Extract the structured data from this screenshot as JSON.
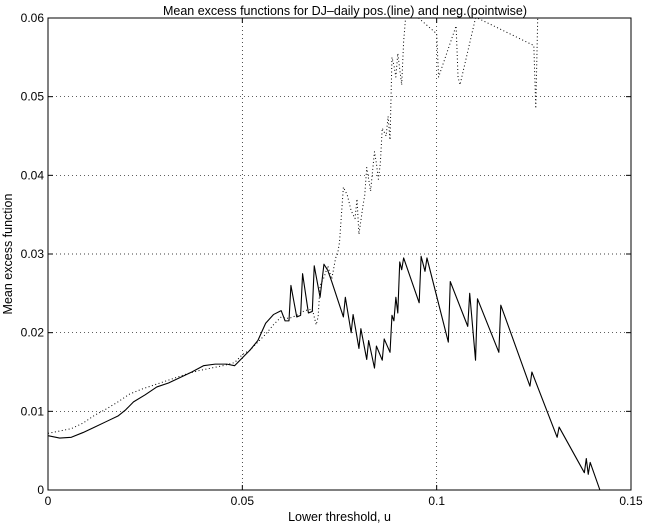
{
  "chart_data": {
    "type": "line",
    "title": "Mean excess functions for DJ–daily pos.(line) and neg.(pointwise)",
    "xlabel": "Lower threshold, u",
    "ylabel": "Mean excess function",
    "xlim": [
      0,
      0.15
    ],
    "ylim": [
      0,
      0.06
    ],
    "xticks": [
      0,
      0.05,
      0.1,
      0.15
    ],
    "xtick_labels": [
      "0",
      "0.05",
      "0.1",
      "0.15"
    ],
    "yticks": [
      0,
      0.01,
      0.02,
      0.03,
      0.04,
      0.05,
      0.06
    ],
    "ytick_labels": [
      "0",
      "0.01",
      "0.02",
      "0.03",
      "0.04",
      "0.05",
      "0.06"
    ],
    "grid": true,
    "series": [
      {
        "style": "solid",
        "color": "#000000",
        "x": [
          0,
          0.003,
          0.006,
          0.009,
          0.012,
          0.015,
          0.018,
          0.02,
          0.022,
          0.025,
          0.028,
          0.031,
          0.034,
          0.037,
          0.04,
          0.043,
          0.046,
          0.048,
          0.05,
          0.052,
          0.054,
          0.056,
          0.058,
          0.06,
          0.061,
          0.062,
          0.0625,
          0.064,
          0.065,
          0.0655,
          0.067,
          0.068,
          0.0685,
          0.07,
          0.071,
          0.072,
          0.073,
          0.074,
          0.076,
          0.0765,
          0.078,
          0.0785,
          0.08,
          0.0805,
          0.082,
          0.0825,
          0.084,
          0.0845,
          0.086,
          0.0865,
          0.088,
          0.0885,
          0.089,
          0.0895,
          0.09,
          0.0905,
          0.091,
          0.0915,
          0.0955,
          0.096,
          0.097,
          0.0975,
          0.103,
          0.1035,
          0.108,
          0.1085,
          0.11,
          0.1105,
          0.116,
          0.1165,
          0.124,
          0.1245,
          0.131,
          0.1315,
          0.138,
          0.1385,
          0.139,
          0.1395,
          0.142
        ],
        "y": [
          0.0069,
          0.0066,
          0.0067,
          0.0073,
          0.008,
          0.0087,
          0.0094,
          0.0102,
          0.0112,
          0.0121,
          0.0131,
          0.0136,
          0.0143,
          0.015,
          0.0158,
          0.016,
          0.016,
          0.0158,
          0.0168,
          0.0178,
          0.019,
          0.0212,
          0.0223,
          0.0228,
          0.0215,
          0.0215,
          0.026,
          0.022,
          0.0222,
          0.0275,
          0.0225,
          0.0227,
          0.0285,
          0.0245,
          0.0287,
          0.0279,
          0.0265,
          0.025,
          0.022,
          0.0245,
          0.02,
          0.0223,
          0.018,
          0.0205,
          0.0166,
          0.019,
          0.0155,
          0.0183,
          0.0165,
          0.0192,
          0.0175,
          0.0222,
          0.0215,
          0.0245,
          0.0225,
          0.029,
          0.028,
          0.0295,
          0.0238,
          0.0297,
          0.0278,
          0.0295,
          0.0188,
          0.0265,
          0.0208,
          0.025,
          0.0165,
          0.0243,
          0.0175,
          0.0235,
          0.0132,
          0.015,
          0.0067,
          0.008,
          0.0022,
          0.004,
          0.002,
          0.0035,
          0
        ]
      },
      {
        "style": "dotted",
        "color": "#000000",
        "x": [
          0,
          0.003,
          0.006,
          0.009,
          0.012,
          0.015,
          0.018,
          0.021,
          0.024,
          0.027,
          0.03,
          0.033,
          0.036,
          0.039,
          0.042,
          0.045,
          0.048,
          0.05,
          0.052,
          0.054,
          0.056,
          0.058,
          0.06,
          0.062,
          0.064,
          0.066,
          0.068,
          0.069,
          0.0695,
          0.07,
          0.071,
          0.072,
          0.073,
          0.074,
          0.0745,
          0.075,
          0.076,
          0.077,
          0.078,
          0.079,
          0.0795,
          0.08,
          0.081,
          0.0815,
          0.082,
          0.083,
          0.084,
          0.0845,
          0.085,
          0.0855,
          0.086,
          0.087,
          0.0875,
          0.088,
          0.0885,
          0.089,
          0.0895,
          0.09,
          0.0905,
          0.091,
          0.0915,
          0.092,
          0.093,
          0.1,
          0.1005,
          0.105,
          0.1055,
          0.106,
          0.11,
          0.1105,
          0.125,
          0.1255,
          0.126
        ],
        "y": [
          0.0072,
          0.0075,
          0.0078,
          0.0085,
          0.0095,
          0.0103,
          0.0112,
          0.0122,
          0.0128,
          0.0133,
          0.0138,
          0.0143,
          0.0148,
          0.0152,
          0.0155,
          0.0158,
          0.0162,
          0.0172,
          0.0178,
          0.0188,
          0.0198,
          0.021,
          0.022,
          0.0218,
          0.0222,
          0.0228,
          0.023,
          0.021,
          0.022,
          0.026,
          0.027,
          0.0285,
          0.0268,
          0.0295,
          0.03,
          0.0315,
          0.0385,
          0.0375,
          0.0355,
          0.0345,
          0.037,
          0.0325,
          0.036,
          0.0375,
          0.041,
          0.038,
          0.043,
          0.0415,
          0.0395,
          0.0415,
          0.046,
          0.045,
          0.0475,
          0.0445,
          0.055,
          0.054,
          0.0525,
          0.0555,
          0.0535,
          0.0515,
          0.057,
          0.06,
          0.061,
          0.058,
          0.0525,
          0.059,
          0.0525,
          0.0515,
          0.06,
          0.06,
          0.0565,
          0.0485,
          0.06
        ]
      }
    ]
  }
}
